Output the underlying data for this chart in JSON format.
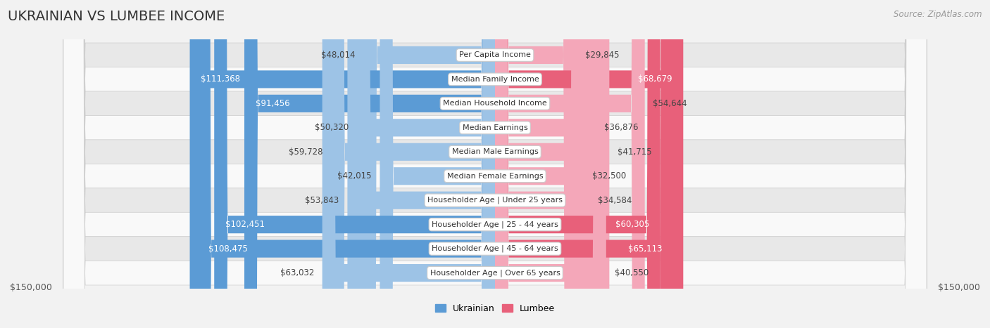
{
  "title": "UKRAINIAN VS LUMBEE INCOME",
  "source": "Source: ZipAtlas.com",
  "categories": [
    "Per Capita Income",
    "Median Family Income",
    "Median Household Income",
    "Median Earnings",
    "Median Male Earnings",
    "Median Female Earnings",
    "Householder Age | Under 25 years",
    "Householder Age | 25 - 44 years",
    "Householder Age | 45 - 64 years",
    "Householder Age | Over 65 years"
  ],
  "ukrainian_values": [
    48014,
    111368,
    91456,
    50320,
    59728,
    42015,
    53843,
    102451,
    108475,
    63032
  ],
  "lumbee_values": [
    29845,
    68679,
    54644,
    36876,
    41715,
    32500,
    34584,
    60305,
    65113,
    40550
  ],
  "ukrainian_labels": [
    "$48,014",
    "$111,368",
    "$91,456",
    "$50,320",
    "$59,728",
    "$42,015",
    "$53,843",
    "$102,451",
    "$108,475",
    "$63,032"
  ],
  "lumbee_labels": [
    "$29,845",
    "$68,679",
    "$54,644",
    "$36,876",
    "$41,715",
    "$32,500",
    "$34,584",
    "$60,305",
    "$65,113",
    "$40,550"
  ],
  "max_value": 150000,
  "ukrainian_color_dark": "#5b9bd5",
  "ukrainian_color_light": "#9dc3e6",
  "lumbee_color_dark": "#e8607a",
  "lumbee_color_light": "#f4a7b9",
  "background_color": "#f2f2f2",
  "row_light": "#f9f9f9",
  "row_dark": "#e8e8e8",
  "center_box_color": "#ffffff",
  "center_box_edge": "#cccccc",
  "legend_ukrainian": "Ukrainian",
  "legend_lumbee": "Lumbee",
  "xlabel_left": "$150,000",
  "xlabel_right": "$150,000",
  "title_fontsize": 14,
  "label_fontsize": 8.5,
  "category_fontsize": 8.0,
  "axis_fontsize": 9,
  "ukr_dark_threshold": 75000,
  "lum_dark_threshold": 55000
}
